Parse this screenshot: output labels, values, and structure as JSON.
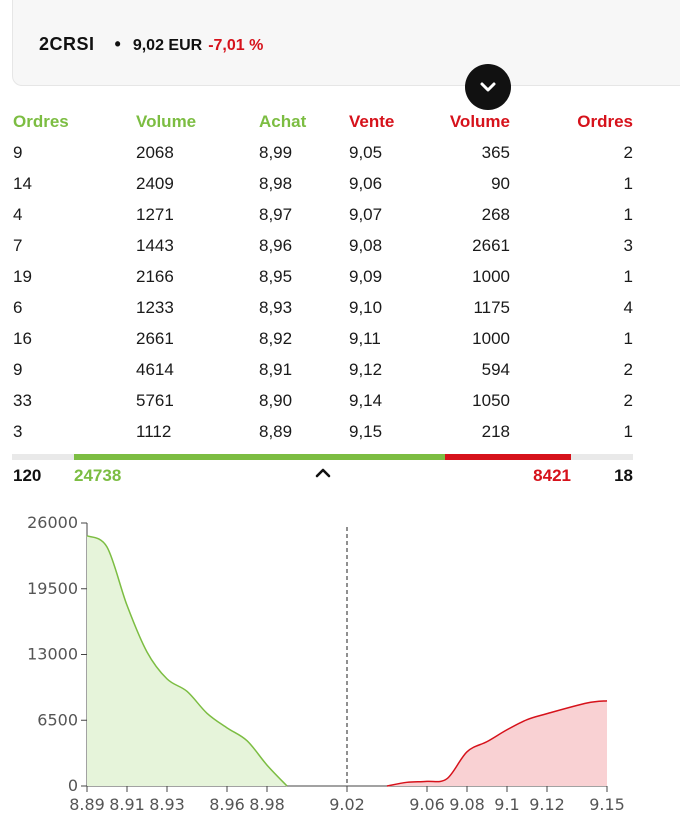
{
  "header": {
    "ticker": "2CRSI",
    "separator": "•",
    "price": "9,02 EUR",
    "change": "-7,01 %"
  },
  "book": {
    "headers": {
      "orders_bid": "Ordres",
      "volume_bid": "Volume",
      "bid": "Achat",
      "ask": "Vente",
      "volume_ask": "Volume",
      "orders_ask": "Ordres"
    },
    "rows": [
      [
        "9",
        "2068",
        "8,99",
        "9,05",
        "365",
        "2"
      ],
      [
        "14",
        "2409",
        "8,98",
        "9,06",
        "90",
        "1"
      ],
      [
        "4",
        "1271",
        "8,97",
        "9,07",
        "268",
        "1"
      ],
      [
        "7",
        "1443",
        "8,96",
        "9,08",
        "2661",
        "3"
      ],
      [
        "19",
        "2166",
        "8,95",
        "9,09",
        "1000",
        "1"
      ],
      [
        "6",
        "1233",
        "8,93",
        "9,10",
        "1175",
        "4"
      ],
      [
        "16",
        "2661",
        "8,92",
        "9,11",
        "1000",
        "1"
      ],
      [
        "9",
        "4614",
        "8,91",
        "9,12",
        "594",
        "2"
      ],
      [
        "33",
        "5761",
        "8,90",
        "9,14",
        "1050",
        "2"
      ],
      [
        "3",
        "1112",
        "8,89",
        "9,15",
        "218",
        "1"
      ]
    ],
    "totals": {
      "orders_bid": "120",
      "volume_bid": "24738",
      "volume_ask": "8421",
      "orders_ask": "18"
    },
    "bid_share": 0.746
  },
  "colors": {
    "bid": "#7cbd42",
    "ask": "#d6121b",
    "bid_fill": "#e6f4da",
    "ask_fill": "#f9d1d3"
  },
  "icons": {
    "toggle": "chevron-down-icon",
    "collapse": "chevron-up-icon"
  },
  "chart_data": {
    "type": "area",
    "title": "",
    "xlabel": "",
    "ylabel": "",
    "ylim": [
      0,
      26000
    ],
    "yticks": [
      "0",
      "6500",
      "13000",
      "19500",
      "26000"
    ],
    "xticks": [
      "8.89",
      "8.91",
      "8.93",
      "8.96",
      "8.98",
      "9.02",
      "9.06",
      "9.08",
      "9.1",
      "9.12",
      "9.15"
    ],
    "mid_price": "9.02",
    "series": [
      {
        "side": "bid",
        "x": [
          "8.89",
          "8.90",
          "8.91",
          "8.92",
          "8.93",
          "8.94",
          "8.95",
          "8.96",
          "8.97",
          "8.98",
          "8.99"
        ],
        "values": [
          24738,
          23626,
          17865,
          13251,
          10590,
          9357,
          7191,
          5748,
          4477,
          2068,
          0
        ]
      },
      {
        "side": "ask",
        "x": [
          "9.04",
          "9.05",
          "9.06",
          "9.07",
          "9.08",
          "9.09",
          "9.10",
          "9.11",
          "9.12",
          "9.14",
          "9.15"
        ],
        "values": [
          0,
          365,
          455,
          723,
          3384,
          4384,
          5559,
          6559,
          7153,
          8203,
          8421
        ]
      }
    ]
  }
}
